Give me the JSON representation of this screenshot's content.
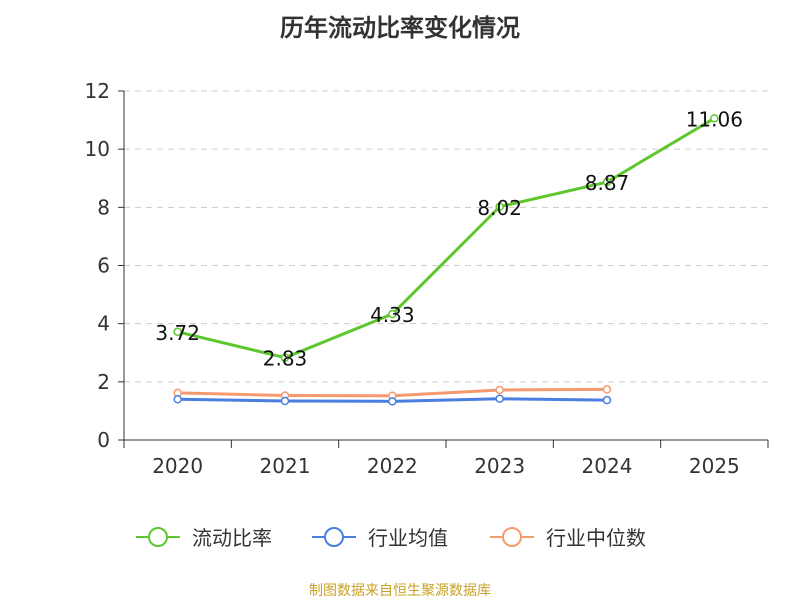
{
  "title": "历年流动比率变化情况",
  "source": "制图数据来自恒生聚源数据库",
  "colors": {
    "current_ratio": "#5ec72d",
    "industry_mean": "#4a7ee0",
    "industry_median": "#f59a6f",
    "grid": "#cccccc",
    "axis": "#333333"
  },
  "chart_data": {
    "type": "line",
    "title": "历年流动比率变化情况",
    "xlabel": "",
    "ylabel": "",
    "categories": [
      "2020",
      "2021",
      "2022",
      "2023",
      "2024",
      "2025"
    ],
    "ylim": [
      0,
      12
    ],
    "yticks": [
      0,
      2,
      4,
      6,
      8,
      10,
      12
    ],
    "grid": "horizontal-dashed",
    "legend_position": "bottom",
    "series": [
      {
        "name": "流动比率",
        "values": [
          3.72,
          2.83,
          4.33,
          8.02,
          8.87,
          11.06
        ],
        "labels": [
          "3.72",
          "2.83",
          "4.33",
          "8.02",
          "8.87",
          "11.06"
        ]
      },
      {
        "name": "行业均值",
        "values": [
          1.4,
          1.34,
          1.33,
          1.42,
          1.37,
          null
        ]
      },
      {
        "name": "行业中位数",
        "values": [
          1.62,
          1.53,
          1.52,
          1.72,
          1.74,
          null
        ]
      }
    ]
  }
}
